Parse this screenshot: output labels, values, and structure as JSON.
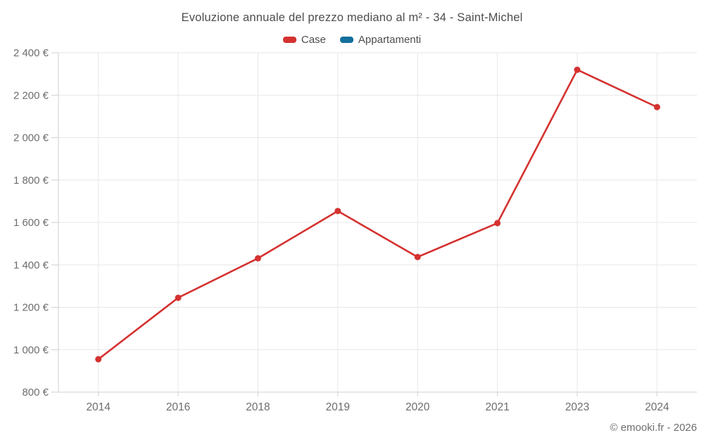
{
  "chart_data": {
    "type": "line",
    "title": "Evoluzione annuale del prezzo mediano al m² - 34 - Saint-Michel",
    "categories": [
      "2014",
      "2016",
      "2018",
      "2019",
      "2020",
      "2021",
      "2023",
      "2024"
    ],
    "series": [
      {
        "name": "Case",
        "color": "#d43230",
        "values": [
          955,
          1245,
          1431,
          1654,
          1437,
          1597,
          2320,
          2144
        ]
      },
      {
        "name": "Appartamenti",
        "color": "#136f9c",
        "values": []
      }
    ],
    "ylim": [
      800,
      2400
    ],
    "yticks": [
      800,
      1000,
      1200,
      1400,
      1600,
      1800,
      2000,
      2200,
      2400
    ],
    "ytick_labels": [
      "800 €",
      "1 000 €",
      "1 200 €",
      "1 400 €",
      "1 600 €",
      "1 800 €",
      "2 000 €",
      "2 200 €",
      "2 400 €"
    ],
    "xlabel": "",
    "ylabel": "",
    "grid": true,
    "legend_position": "top"
  },
  "footer": {
    "copyright": "© emooki.fr - 2026"
  },
  "colors": {
    "gridline": "#e7e7e7",
    "axis": "#cfcfcf",
    "axis_label": "#6d6d6d",
    "title_text": "#4d4d4d"
  }
}
